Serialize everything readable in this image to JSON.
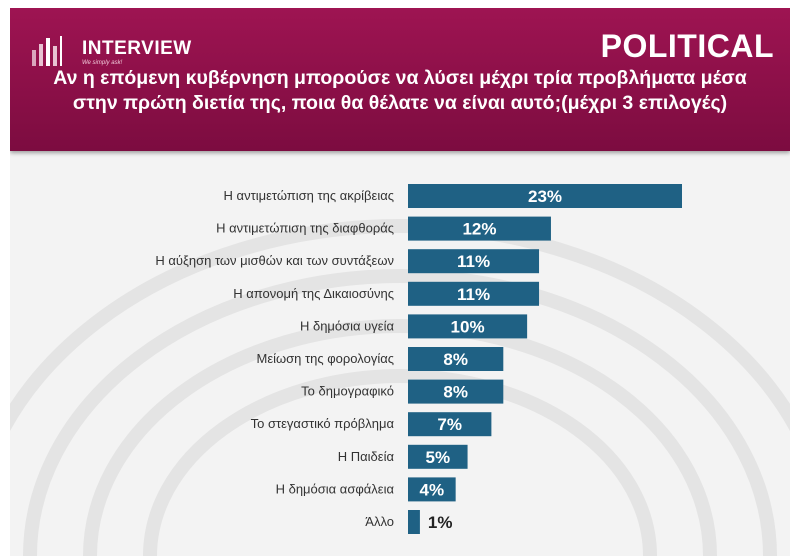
{
  "header": {
    "logo_text": "INTERVIEW",
    "logo_tagline": "We simply ask!",
    "brand": "POLITICAL",
    "question": "Αν η επόμενη κυβέρνηση μπορούσε να λύσει μέχρι τρία προβλήματα μέσα στην πρώτη διετία της, ποια θα θέλατε να είναι αυτό;(μέχρι 3 επιλογές)"
  },
  "colors": {
    "header_bg": "#8a0f47",
    "bar": "#1f6184",
    "background": "#f3f3f3"
  },
  "chart_data": {
    "type": "bar",
    "orientation": "horizontal",
    "categories": [
      "Η αντιμετώπιση της ακρίβειας",
      "Η αντιμετώπιση της διαφθοράς",
      "Η αύξηση των μισθών και των συντάξεων",
      "Η απονομή της Δικαιοσύνης",
      "Η δημόσια υγεία",
      "Μείωση της φορολογίας",
      "Το δημογραφικό",
      "Το στεγαστικό πρόβλημα",
      "Η Παιδεία",
      "Η δημόσια ασφάλεια",
      "Άλλο"
    ],
    "values": [
      23,
      12,
      11,
      11,
      10,
      8,
      8,
      7,
      5,
      4,
      1
    ],
    "value_labels": [
      "23%",
      "12%",
      "11%",
      "11%",
      "10%",
      "8%",
      "8%",
      "7%",
      "5%",
      "4%",
      "1%"
    ],
    "unit": "%",
    "xlim": [
      0,
      23
    ],
    "grid": false,
    "legend": "none"
  }
}
